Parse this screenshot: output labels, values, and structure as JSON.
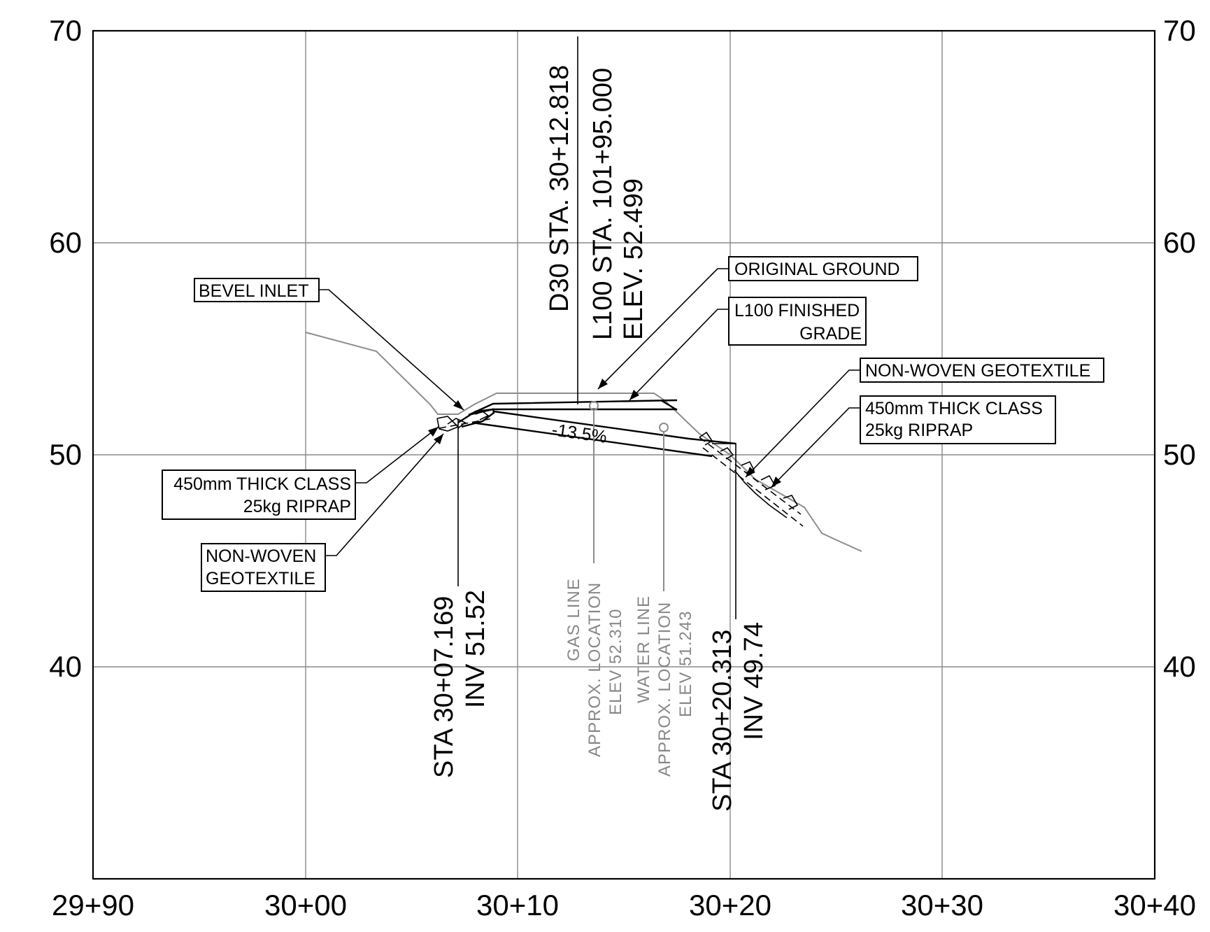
{
  "axes": {
    "y_ticks": [
      "70",
      "60",
      "50",
      "40"
    ],
    "x_ticks": [
      "29+90",
      "30+00",
      "30+10",
      "30+20",
      "30+30",
      "30+40"
    ]
  },
  "callouts": {
    "bevel_inlet": "BEVEL INLET",
    "original_ground": "ORIGINAL  GROUND",
    "finished_grade_1": "L100 FINISHED",
    "finished_grade_2": "GRADE",
    "geotextile_right": "NON-WOVEN GEOTEXTILE",
    "riprap_right_1": "450mm THICK CLASS",
    "riprap_right_2": "25kg RIPRAP",
    "riprap_left_1": "450mm THICK CLASS",
    "riprap_left_2": "25kg RIPRAP",
    "geotextile_left_1": "NON-WOVEN",
    "geotextile_left_2": "GEOTEXTILE"
  },
  "crossing": {
    "line1": "D30 STA. 30+12.818",
    "line2": "L100 STA. 101+95.000",
    "line3": "ELEV. 52.499"
  },
  "slope_label": "-13.5%",
  "inlet_station": {
    "line1": "STA  30+07.169",
    "line2": "INV 51.52"
  },
  "outlet_station": {
    "line1": "STA  30+20.313",
    "line2": "INV 49.74"
  },
  "gas_line": {
    "line1": "GAS  LINE",
    "line2": "APPROX.  LOCATION",
    "line3": "ELEV  52.310"
  },
  "water_line": {
    "line1": "WATER  LINE",
    "line2": "APPROX.  LOCATION",
    "line3": "ELEV  51.243"
  },
  "colors": {
    "grid": "#8a8a8a",
    "ground": "#8c8c8c",
    "utility_text": "#888888",
    "ink": "#000000"
  }
}
